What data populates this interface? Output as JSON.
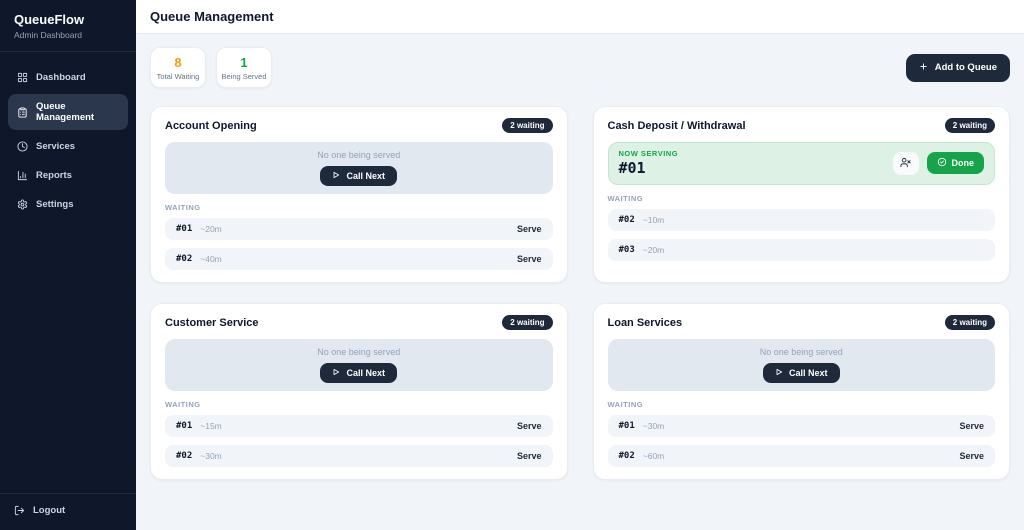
{
  "brand": {
    "name": "QueueFlow",
    "subtitle": "Admin Dashboard"
  },
  "sidebar": {
    "items": [
      {
        "id": "dashboard",
        "label": "Dashboard",
        "icon": "layout-grid-icon",
        "active": false
      },
      {
        "id": "queue-management",
        "label": "Queue Management",
        "icon": "clipboard-list-icon",
        "active": true
      },
      {
        "id": "services",
        "label": "Services",
        "icon": "clock-icon",
        "active": false
      },
      {
        "id": "reports",
        "label": "Reports",
        "icon": "bar-chart-icon",
        "active": false
      },
      {
        "id": "settings",
        "label": "Settings",
        "icon": "gear-icon",
        "active": false
      }
    ],
    "logout_label": "Logout"
  },
  "header": {
    "title": "Queue Management"
  },
  "toolbar": {
    "add_label": "Add to Queue"
  },
  "stats": [
    {
      "value": "8",
      "label": "Total Waiting",
      "color": "#f59e0b"
    },
    {
      "value": "1",
      "label": "Being Served",
      "color": "#16a34a"
    }
  ],
  "strings": {
    "no_one_serving": "No one being served",
    "call_next": "Call Next",
    "waiting": "WAITING",
    "now_serving": "NOW SERVING",
    "done": "Done",
    "serve": "Serve"
  },
  "colors": {
    "sidebar_bg": "#0f172a",
    "accent_dark": "#1e293b",
    "green": "#16a34a",
    "orange": "#f59e0b",
    "serving_bg": "#def1e5",
    "page_bg": "#f1f5f9"
  },
  "queues": [
    {
      "name": "Account Opening",
      "badge": "2 waiting",
      "serving_ticket": null,
      "rows": [
        {
          "ticket": "#01",
          "wait": "~20m"
        },
        {
          "ticket": "#02",
          "wait": "~40m"
        }
      ]
    },
    {
      "name": "Cash Deposit / Withdrawal",
      "badge": "2 waiting",
      "serving_ticket": "#01",
      "rows": [
        {
          "ticket": "#02",
          "wait": "~10m"
        },
        {
          "ticket": "#03",
          "wait": "~20m"
        }
      ]
    },
    {
      "name": "Customer Service",
      "badge": "2 waiting",
      "serving_ticket": null,
      "rows": [
        {
          "ticket": "#01",
          "wait": "~15m"
        },
        {
          "ticket": "#02",
          "wait": "~30m"
        }
      ]
    },
    {
      "name": "Loan Services",
      "badge": "2 waiting",
      "serving_ticket": null,
      "rows": [
        {
          "ticket": "#01",
          "wait": "~30m"
        },
        {
          "ticket": "#02",
          "wait": "~60m"
        }
      ]
    }
  ]
}
